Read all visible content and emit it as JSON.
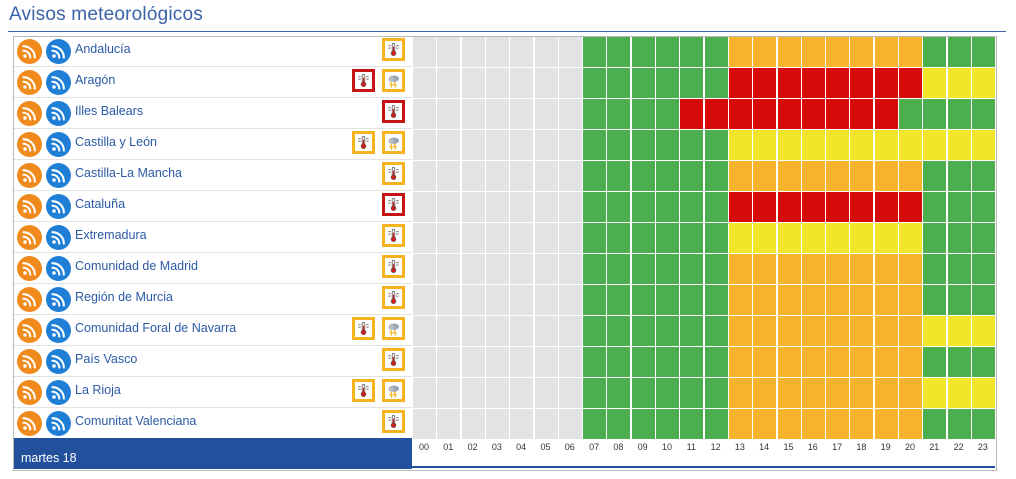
{
  "page": {
    "title": "Avisos meteorológicos"
  },
  "colors": {
    "none": "#e3e3e6",
    "green": "#4cae4f",
    "yellow": "#f3e52a",
    "orange": "#f6b42d",
    "red": "#d70a0a"
  },
  "regions": [
    {
      "name": "Andalucía",
      "warnings": [
        {
          "type": "temperature-icon",
          "level": "orange"
        }
      ],
      "hours": [
        "none",
        "none",
        "none",
        "none",
        "none",
        "none",
        "none",
        "green",
        "green",
        "green",
        "green",
        "green",
        "green",
        "orange",
        "orange",
        "orange",
        "orange",
        "orange",
        "orange",
        "orange",
        "orange",
        "green",
        "green",
        "green"
      ]
    },
    {
      "name": "Aragón",
      "warnings": [
        {
          "type": "temperature-icon",
          "level": "red"
        },
        {
          "type": "storm-icon",
          "level": "yellow"
        }
      ],
      "hours": [
        "none",
        "none",
        "none",
        "none",
        "none",
        "none",
        "none",
        "green",
        "green",
        "green",
        "green",
        "green",
        "green",
        "red",
        "red",
        "red",
        "red",
        "red",
        "red",
        "red",
        "red",
        "yellow",
        "yellow",
        "yellow"
      ]
    },
    {
      "name": "Illes Balears",
      "warnings": [
        {
          "type": "temperature-icon",
          "level": "red"
        }
      ],
      "hours": [
        "none",
        "none",
        "none",
        "none",
        "none",
        "none",
        "none",
        "green",
        "green",
        "green",
        "green",
        "red",
        "red",
        "red",
        "red",
        "red",
        "red",
        "red",
        "red",
        "red",
        "green",
        "green",
        "green",
        "green"
      ]
    },
    {
      "name": "Castilla y León",
      "warnings": [
        {
          "type": "temperature-icon",
          "level": "yellow"
        },
        {
          "type": "storm-icon",
          "level": "yellow"
        }
      ],
      "hours": [
        "none",
        "none",
        "none",
        "none",
        "none",
        "none",
        "none",
        "green",
        "green",
        "green",
        "green",
        "green",
        "green",
        "yellow",
        "yellow",
        "yellow",
        "yellow",
        "yellow",
        "yellow",
        "yellow",
        "yellow",
        "yellow",
        "yellow",
        "yellow"
      ]
    },
    {
      "name": "Castilla-La Mancha",
      "warnings": [
        {
          "type": "temperature-icon",
          "level": "orange"
        }
      ],
      "hours": [
        "none",
        "none",
        "none",
        "none",
        "none",
        "none",
        "none",
        "green",
        "green",
        "green",
        "green",
        "green",
        "green",
        "orange",
        "orange",
        "orange",
        "orange",
        "orange",
        "orange",
        "orange",
        "orange",
        "green",
        "green",
        "green"
      ]
    },
    {
      "name": "Cataluña",
      "warnings": [
        {
          "type": "temperature-icon",
          "level": "red"
        }
      ],
      "hours": [
        "none",
        "none",
        "none",
        "none",
        "none",
        "none",
        "none",
        "green",
        "green",
        "green",
        "green",
        "green",
        "green",
        "red",
        "red",
        "red",
        "red",
        "red",
        "red",
        "red",
        "red",
        "green",
        "green",
        "green"
      ]
    },
    {
      "name": "Extremadura",
      "warnings": [
        {
          "type": "temperature-icon",
          "level": "yellow"
        }
      ],
      "hours": [
        "none",
        "none",
        "none",
        "none",
        "none",
        "none",
        "none",
        "green",
        "green",
        "green",
        "green",
        "green",
        "green",
        "yellow",
        "yellow",
        "yellow",
        "yellow",
        "yellow",
        "yellow",
        "yellow",
        "yellow",
        "green",
        "green",
        "green"
      ]
    },
    {
      "name": "Comunidad de Madrid",
      "warnings": [
        {
          "type": "temperature-icon",
          "level": "orange"
        }
      ],
      "hours": [
        "none",
        "none",
        "none",
        "none",
        "none",
        "none",
        "none",
        "green",
        "green",
        "green",
        "green",
        "green",
        "green",
        "orange",
        "orange",
        "orange",
        "orange",
        "orange",
        "orange",
        "orange",
        "orange",
        "green",
        "green",
        "green"
      ]
    },
    {
      "name": "Región de Murcia",
      "warnings": [
        {
          "type": "temperature-icon",
          "level": "orange"
        }
      ],
      "hours": [
        "none",
        "none",
        "none",
        "none",
        "none",
        "none",
        "none",
        "green",
        "green",
        "green",
        "green",
        "green",
        "green",
        "orange",
        "orange",
        "orange",
        "orange",
        "orange",
        "orange",
        "orange",
        "orange",
        "green",
        "green",
        "green"
      ]
    },
    {
      "name": "Comunidad Foral de Navarra",
      "warnings": [
        {
          "type": "temperature-icon",
          "level": "orange"
        },
        {
          "type": "storm-icon",
          "level": "yellow"
        }
      ],
      "hours": [
        "none",
        "none",
        "none",
        "none",
        "none",
        "none",
        "none",
        "green",
        "green",
        "green",
        "green",
        "green",
        "green",
        "orange",
        "orange",
        "orange",
        "orange",
        "orange",
        "orange",
        "orange",
        "orange",
        "yellow",
        "yellow",
        "yellow"
      ]
    },
    {
      "name": "País Vasco",
      "warnings": [
        {
          "type": "temperature-icon",
          "level": "orange"
        }
      ],
      "hours": [
        "none",
        "none",
        "none",
        "none",
        "none",
        "none",
        "none",
        "green",
        "green",
        "green",
        "green",
        "green",
        "green",
        "orange",
        "orange",
        "orange",
        "orange",
        "orange",
        "orange",
        "orange",
        "orange",
        "green",
        "green",
        "green"
      ]
    },
    {
      "name": "La Rioja",
      "warnings": [
        {
          "type": "temperature-icon",
          "level": "orange"
        },
        {
          "type": "storm-icon",
          "level": "yellow"
        }
      ],
      "hours": [
        "none",
        "none",
        "none",
        "none",
        "none",
        "none",
        "none",
        "green",
        "green",
        "green",
        "green",
        "green",
        "green",
        "orange",
        "orange",
        "orange",
        "orange",
        "orange",
        "orange",
        "orange",
        "orange",
        "yellow",
        "yellow",
        "yellow"
      ]
    },
    {
      "name": "Comunitat Valenciana",
      "warnings": [
        {
          "type": "temperature-icon",
          "level": "orange"
        }
      ],
      "hours": [
        "none",
        "none",
        "none",
        "none",
        "none",
        "none",
        "none",
        "green",
        "green",
        "green",
        "green",
        "green",
        "green",
        "orange",
        "orange",
        "orange",
        "orange",
        "orange",
        "orange",
        "orange",
        "orange",
        "green",
        "green",
        "green"
      ]
    }
  ],
  "footer": {
    "day_label": "martes 18"
  },
  "hours_axis": [
    "00",
    "01",
    "02",
    "03",
    "04",
    "05",
    "06",
    "07",
    "08",
    "09",
    "10",
    "11",
    "12",
    "13",
    "14",
    "15",
    "16",
    "17",
    "18",
    "19",
    "20",
    "21",
    "22",
    "23"
  ]
}
